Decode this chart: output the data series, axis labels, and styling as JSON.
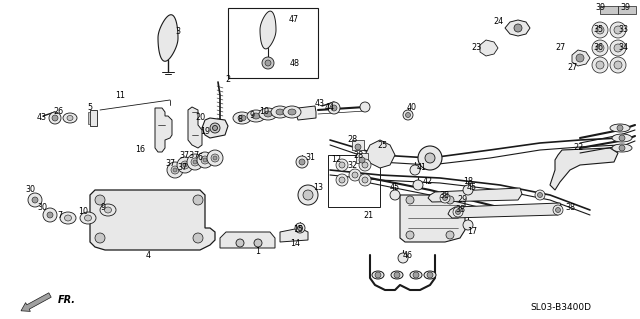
{
  "background_color": "#ffffff",
  "line_color": "#1a1a1a",
  "text_color": "#000000",
  "diagram_code_text": "SL03-B3400D",
  "figsize": [
    6.4,
    3.19
  ],
  "dpi": 100,
  "fill_light": "#e8e8e8",
  "fill_mid": "#c8c8c8",
  "fill_dark": "#a0a0a0"
}
